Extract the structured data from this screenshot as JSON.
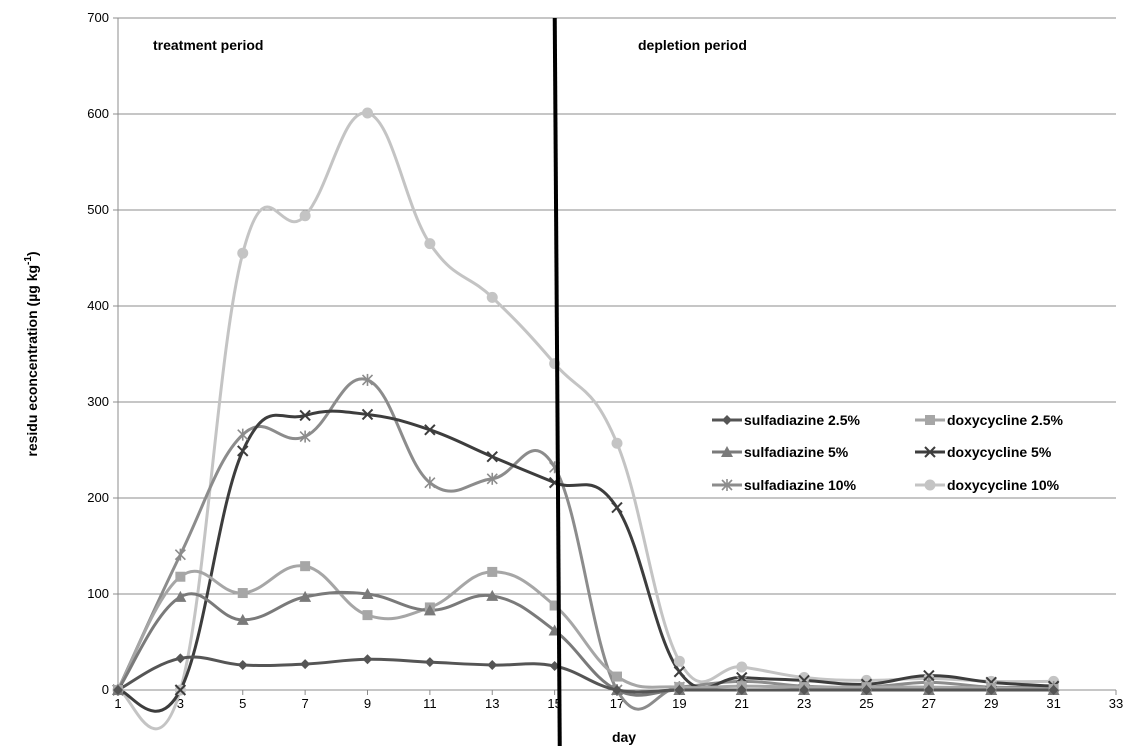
{
  "chart_data": {
    "type": "line",
    "title": "",
    "xlabel": "day",
    "ylabel": "residu econcentration (µg kg",
    "ylabel_superscript": "-1",
    "ylabel_suffix": ")",
    "xlim": [
      1,
      33
    ],
    "ylim": [
      0,
      700
    ],
    "xticks": [
      1,
      3,
      5,
      7,
      9,
      11,
      13,
      15,
      17,
      19,
      21,
      23,
      25,
      27,
      29,
      31,
      33
    ],
    "yticks": [
      0,
      100,
      200,
      300,
      400,
      500,
      600,
      700
    ],
    "grid": "horizontal",
    "legend_position": "right",
    "annotations": [
      {
        "text": "treatment period"
      },
      {
        "text": "depletion period"
      }
    ],
    "divider_x": 15.1,
    "series": [
      {
        "name": "sulfadiazine 2.5%",
        "marker": "diamond",
        "color": "#555555",
        "x": [
          1,
          3,
          5,
          7,
          9,
          11,
          13,
          15,
          17,
          19,
          21,
          23,
          25,
          27,
          29,
          31
        ],
        "y": [
          0,
          33,
          26,
          27,
          32,
          29,
          26,
          25,
          0,
          0,
          0,
          0,
          0,
          0,
          0,
          0
        ]
      },
      {
        "name": "doxycycline 2.5%",
        "marker": "square",
        "color": "#a6a6a6",
        "x": [
          1,
          3,
          5,
          7,
          9,
          11,
          13,
          15,
          17,
          19,
          21,
          23,
          25,
          27,
          29,
          31
        ],
        "y": [
          0,
          118,
          101,
          129,
          78,
          86,
          123,
          88,
          14,
          3,
          4,
          3,
          3,
          3,
          2,
          1
        ]
      },
      {
        "name": "sulfadiazine 5%",
        "marker": "triangle",
        "color": "#7a7a7a",
        "x": [
          1,
          3,
          5,
          7,
          9,
          11,
          13,
          15,
          17,
          19,
          21,
          23,
          25,
          27,
          29,
          31
        ],
        "y": [
          0,
          97,
          73,
          97,
          100,
          83,
          98,
          62,
          0,
          0,
          0,
          0,
          0,
          0,
          0,
          0
        ]
      },
      {
        "name": "doxycycline 5%",
        "marker": "x",
        "color": "#3d3d3d",
        "x": [
          1,
          3,
          5,
          7,
          9,
          11,
          13,
          15,
          17,
          19,
          21,
          23,
          25,
          27,
          29,
          31
        ],
        "y": [
          0,
          0,
          249,
          286,
          287,
          271,
          243,
          216,
          190,
          19,
          13,
          10,
          6,
          15,
          8,
          4
        ]
      },
      {
        "name": "sulfadiazine 10%",
        "marker": "asterisk",
        "color": "#8c8c8c",
        "x": [
          1,
          3,
          5,
          7,
          9,
          11,
          13,
          15,
          17,
          19,
          21,
          23,
          25,
          27,
          29,
          31
        ],
        "y": [
          0,
          141,
          266,
          264,
          323,
          216,
          220,
          232,
          0,
          3,
          9,
          4,
          3,
          8,
          3,
          3
        ]
      },
      {
        "name": "doxycycline 10%",
        "marker": "circle",
        "color": "#c4c4c4",
        "x": [
          1,
          3,
          5,
          7,
          9,
          11,
          13,
          15,
          17,
          19,
          21,
          23,
          25,
          27,
          29,
          31
        ],
        "y": [
          0,
          0,
          455,
          494,
          601,
          465,
          409,
          340,
          257,
          30,
          24,
          13,
          10,
          12,
          9,
          9
        ]
      }
    ]
  }
}
